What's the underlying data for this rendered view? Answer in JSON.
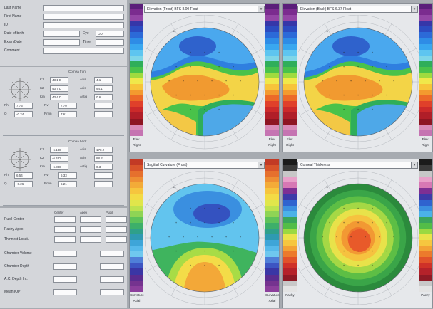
{
  "patient": {
    "labels": [
      "Last Name",
      "First Name",
      "ID",
      "Date of birth",
      "Exam Date",
      "Comment"
    ],
    "eye_label": "Eye",
    "eye_value": "OD",
    "time_label": "Time"
  },
  "keratometry": {
    "blocks": [
      {
        "title": "Cornea front",
        "rows": [
          {
            "a": "K1",
            "b": "43.1 D",
            "c": "Axis",
            "d": "4.1"
          },
          {
            "a": "K2",
            "b": "43.7 D",
            "c": "Axis",
            "d": "94.1"
          },
          {
            "a": "Km",
            "b": "43.4 D",
            "c": "Astig",
            "d": "0.6"
          },
          {
            "a": "Rh",
            "b": "7.75",
            "c": "Rv",
            "d": "7.70"
          },
          {
            "a": "Q",
            "b": "-0.24",
            "c": "Rmin",
            "d": "7.61"
          }
        ]
      },
      {
        "title": "Cornea back",
        "rows": [
          {
            "a": "K1",
            "b": "-6.1 D",
            "c": "Axis",
            "d": "178.2"
          },
          {
            "a": "K2",
            "b": "-6.4 D",
            "c": "Axis",
            "d": "88.2"
          },
          {
            "a": "Km",
            "b": "-6.3 D",
            "c": "Astig",
            "d": "0.3"
          },
          {
            "a": "Rh",
            "b": "6.54",
            "c": "Rv",
            "d": "6.33"
          },
          {
            "a": "Q",
            "b": "-0.26",
            "c": "Rmin",
            "d": "6.21"
          }
        ]
      }
    ],
    "pupil_headers": [
      "Center",
      "Apex",
      "Pupil"
    ]
  },
  "measurements": {
    "rows": [
      {
        "label": "Pupil Center",
        "v1": "",
        "v2": "",
        "v3": ""
      },
      {
        "label": "Pachy Apex",
        "v1": "",
        "v2": "",
        "v3": ""
      },
      {
        "label": "Thinnest Locat.",
        "v1": "",
        "v2": "",
        "v3": ""
      }
    ],
    "rows2": [
      {
        "label": "Chamber Volume",
        "v1": "",
        "mid": "",
        "v2": ""
      },
      {
        "label": "Chamber Depth",
        "v1": "",
        "mid": "",
        "v2": ""
      },
      {
        "label": "A.C. Depth Int.",
        "v1": "",
        "mid": "",
        "v2": ""
      },
      {
        "label": "Mean IOP",
        "v1": "",
        "mid": "",
        "v2": ""
      }
    ]
  },
  "maps": [
    {
      "title": "Elevation (Front) BFS 8.00 Float",
      "scale_caption": "Elev.",
      "scale_colors": [
        "#5b1f7a",
        "#7b2c8f",
        "#9446a6",
        "#3636a8",
        "#2c4bc0",
        "#2c6ad8",
        "#2e8ce6",
        "#39a7ef",
        "#5ec5f0",
        "#7fd6e8",
        "#2fae5a",
        "#49c24a",
        "#9fdb3f",
        "#f0e84a",
        "#f7c43a",
        "#f39a2f",
        "#ec6a28",
        "#e0402a",
        "#cc2a2a",
        "#b01e28",
        "#8e1622",
        "#d98bb7",
        "#c574b2"
      ],
      "scale_text": [
        "",
        "",
        "",
        "",
        "",
        "",
        "",
        "",
        "",
        "",
        "",
        "",
        "",
        "",
        "",
        "",
        "",
        "",
        "",
        "",
        "",
        "",
        ""
      ],
      "bottom_label": "Right",
      "orientation": {
        "top": "",
        "left": "",
        "right": "",
        "bottom": ""
      },
      "style": "elev_front"
    },
    {
      "title": "Elevation (Back) BFS 6.37 Float",
      "scale_caption": "Elev.",
      "scale_colors": [
        "#5b1f7a",
        "#7b2c8f",
        "#9446a6",
        "#3636a8",
        "#2c4bc0",
        "#2c6ad8",
        "#2e8ce6",
        "#39a7ef",
        "#5ec5f0",
        "#7fd6e8",
        "#2fae5a",
        "#49c24a",
        "#9fdb3f",
        "#f0e84a",
        "#f7c43a",
        "#f39a2f",
        "#ec6a28",
        "#e0402a",
        "#cc2a2a",
        "#b01e28",
        "#8e1622",
        "#d98bb7",
        "#c574b2"
      ],
      "scale_text": [
        "",
        "",
        "",
        "",
        "",
        "",
        "",
        "",
        "",
        "",
        "",
        "",
        "",
        "",
        "",
        "",
        "",
        "",
        "",
        "",
        "",
        "",
        ""
      ],
      "bottom_label": "Right",
      "orientation": {
        "top": "",
        "left": "",
        "right": "",
        "bottom": ""
      },
      "style": "elev_back"
    },
    {
      "title": "Sagittal Curvature (Front)",
      "scale_caption": "Curvature",
      "scale_colors": [
        "#c23a25",
        "#d8542a",
        "#e6702d",
        "#ee8e33",
        "#f3ab38",
        "#f6c53e",
        "#f3db45",
        "#e0e64b",
        "#bde24f",
        "#8fd455",
        "#5ec25a",
        "#3daf6a",
        "#2fa08a",
        "#2f9ab2",
        "#3ea5d8",
        "#56b9ea",
        "#6fc8ef",
        "#4f7fd8",
        "#3d55c2",
        "#3a36a5",
        "#5a2c90",
        "#75338f",
        "#8c3f9c"
      ],
      "scale_text": [
        "",
        "",
        "",
        "",
        "",
        "",
        "",
        "",
        "",
        "",
        "",
        "",
        "",
        "",
        "",
        "",
        "",
        "",
        "",
        "",
        "",
        "",
        ""
      ],
      "bottom_label": "Axial",
      "orientation": {
        "top": "",
        "left": "",
        "right": "",
        "bottom": ""
      },
      "style": "sagittal"
    },
    {
      "title": "Corneal Thickness",
      "scale_caption": "Pachy",
      "scale_colors": [
        "#1b1b1b",
        "#3b3b3b",
        "#c7c7c7",
        "#e8a0c9",
        "#d778b4",
        "#7e2f93",
        "#3d3aa8",
        "#2f63cf",
        "#3b8fe0",
        "#4bb2e8",
        "#3aa55b",
        "#53bd48",
        "#9bd941",
        "#eae34a",
        "#f6c63f",
        "#f3a235",
        "#ec7a2c",
        "#e1522a",
        "#cf3128",
        "#b5222a",
        "#8f1a25",
        "#c8c8c8",
        "#e3e3e3"
      ],
      "scale_text": [
        "",
        "",
        "",
        "",
        "",
        "",
        "",
        "",
        "",
        "",
        "",
        "",
        "",
        "",
        "",
        "",
        "",
        "",
        "",
        "",
        "",
        "",
        ""
      ],
      "bottom_label": "",
      "orientation": {
        "top": "",
        "left": "",
        "right": "",
        "bottom": ""
      },
      "style": "pachy"
    }
  ]
}
